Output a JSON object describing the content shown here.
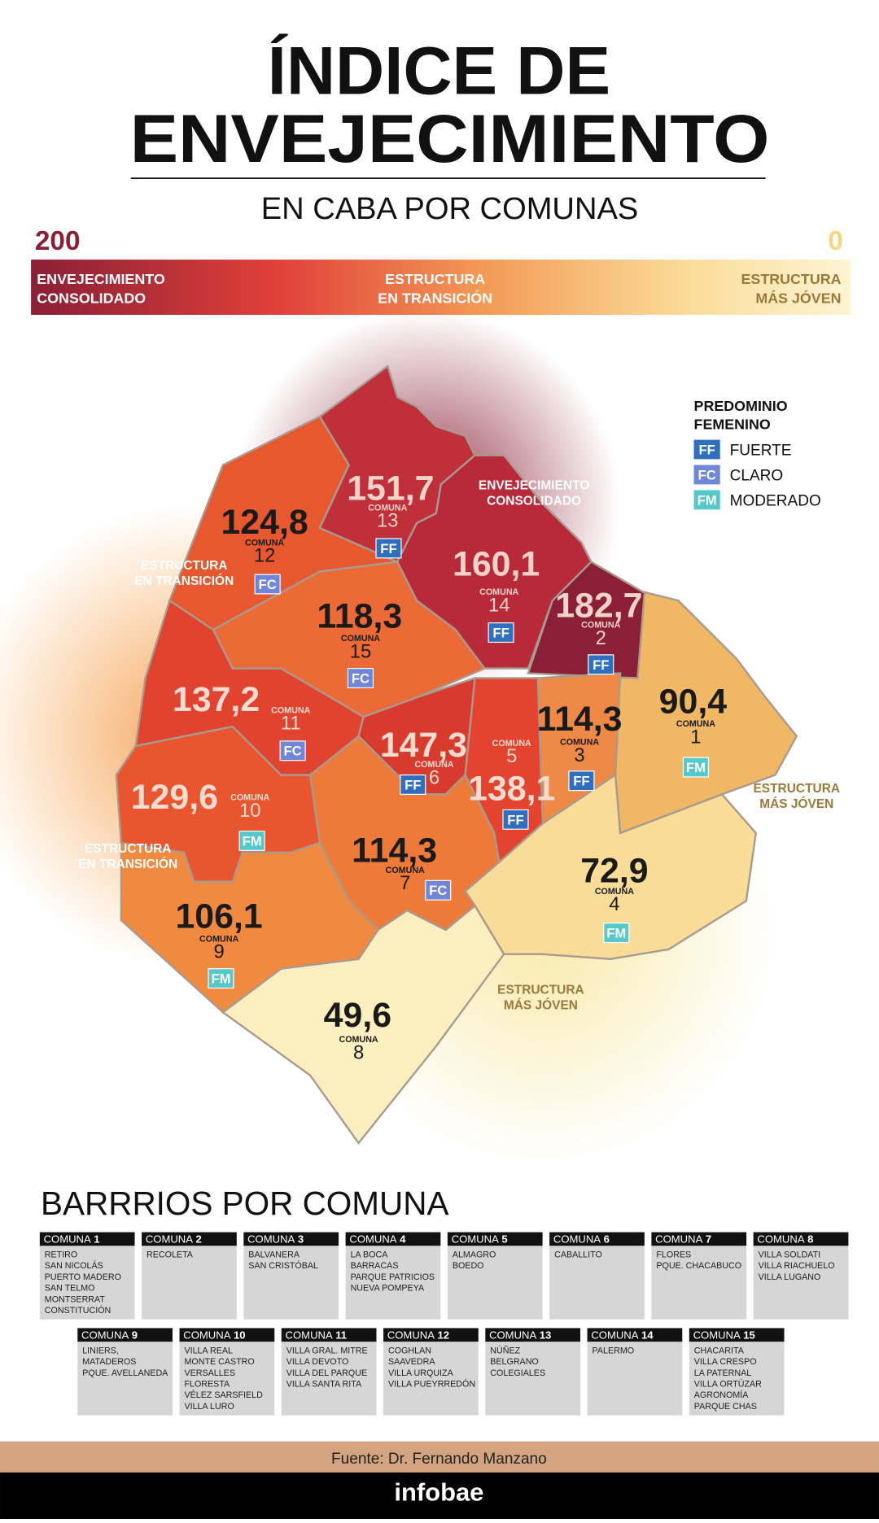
{
  "header": {
    "title_line1": "ÍNDICE DE",
    "title_line2": "ENVEJECIMIENTO",
    "subtitle": "EN CABA POR COMUNAS"
  },
  "scale": {
    "max": "200",
    "min": "0",
    "left": [
      "ENVEJECIMIENTO",
      "CONSOLIDADO"
    ],
    "middle": [
      "ESTRUCTURA",
      "EN TRANSICIÓN"
    ],
    "right": [
      "ESTRUCTURA",
      "MÁS JÓVEN"
    ]
  },
  "legend": {
    "title": [
      "PREDOMINIO",
      "FEMENINO"
    ],
    "items": [
      {
        "code": "FF",
        "label": "FUERTE"
      },
      {
        "code": "FC",
        "label": "CLARO"
      },
      {
        "code": "FM",
        "label": "MODERADO"
      }
    ]
  },
  "zones": [
    [
      "ENVEJECIMIENTO",
      "CONSOLIDADO"
    ],
    [
      "ESTRUCTURA",
      "EN TRANSICIÓN"
    ],
    [
      "ESTRUCTURA",
      "EN TRANSICIÓN"
    ],
    [
      "ESTRUCTURA",
      "MÁS JÓVEN"
    ],
    [
      "ESTRUCTURA",
      "MÁS JÓVEN"
    ]
  ],
  "comunas": [
    {
      "value": "90,4",
      "label": "COMUNA",
      "number": "1",
      "badge": "FM"
    },
    {
      "value": "182,7",
      "label": "COMUNA",
      "number": "2",
      "badge": "FF"
    },
    {
      "value": "114,3",
      "label": "COMUNA",
      "number": "3",
      "badge": "FF"
    },
    {
      "value": "72,9",
      "label": "COMUNA",
      "number": "4",
      "badge": "FM"
    },
    {
      "value": "138,1",
      "label": "COMUNA",
      "number": "5",
      "badge": "FF"
    },
    {
      "value": "147,3",
      "label": "COMUNA",
      "number": "6",
      "badge": "FF"
    },
    {
      "value": "114,3",
      "label": "COMUNA",
      "number": "7",
      "badge": "FC"
    },
    {
      "value": "49,6",
      "label": "COMUNA",
      "number": "8"
    },
    {
      "value": "106,1",
      "label": "COMUNA",
      "number": "9",
      "badge": "FM"
    },
    {
      "value": "129,6",
      "label": "COMUNA",
      "number": "10",
      "badge": "FM"
    },
    {
      "value": "137,2",
      "label": "COMUNA",
      "number": "11",
      "badge": "FC"
    },
    {
      "value": "124,8",
      "label": "COMUNA",
      "number": "12",
      "badge": "FC"
    },
    {
      "value": "151,7",
      "label": "COMUNA",
      "number": "13",
      "badge": "FF"
    },
    {
      "value": "160,1",
      "label": "COMUNA",
      "number": "14",
      "badge": "FF"
    },
    {
      "value": "118,3",
      "label": "COMUNA",
      "number": "15",
      "badge": "FC"
    }
  ],
  "barrios": {
    "title": "BARRRIOS POR COMUNA",
    "boxes": [
      {
        "title": "COMUNA",
        "number": "1",
        "names": [
          "RETIRO",
          "SAN NICOLÁS",
          "PUERTO MADERO",
          "SAN TELMO",
          "MONTSERRAT",
          "CONSTITUCIÓN"
        ]
      },
      {
        "title": "COMUNA",
        "number": "2",
        "names": [
          "RECOLETA"
        ]
      },
      {
        "title": "COMUNA",
        "number": "3",
        "names": [
          "BALVANERA",
          "SAN CRISTÓBAL"
        ]
      },
      {
        "title": "COMUNA",
        "number": "4",
        "names": [
          "LA BOCA",
          "BARRACAS",
          "PARQUE PATRICIOS",
          "NUEVA POMPEYA"
        ]
      },
      {
        "title": "COMUNA",
        "number": "5",
        "names": [
          "ALMAGRO",
          "BOEDO"
        ]
      },
      {
        "title": "COMUNA",
        "number": "6",
        "names": [
          "CABALLITO"
        ]
      },
      {
        "title": "COMUNA",
        "number": "7",
        "names": [
          "FLORES",
          "PQUE. CHACABUCO"
        ]
      },
      {
        "title": "COMUNA",
        "number": "8",
        "names": [
          "VILLA SOLDATI",
          "VILLA RIACHUELO",
          "VILLA LUGANO"
        ]
      },
      {
        "title": "COMUNA",
        "number": "9",
        "names": [
          "LINIERS,",
          "MATADEROS",
          "PQUE. AVELLANEDA"
        ]
      },
      {
        "title": "COMUNA",
        "number": "10",
        "names": [
          "VILLA REAL",
          "MONTE CASTRO",
          "VERSALLES",
          "FLORESTA",
          "VÉLEZ SARSFIELD",
          "VILLA LURO"
        ]
      },
      {
        "title": "COMUNA",
        "number": "11",
        "names": [
          "VILLA GRAL. MITRE",
          "VILLA DEVOTO",
          "VILLA DEL PARQUE",
          "VILLA SANTA RITA"
        ]
      },
      {
        "title": "COMUNA",
        "number": "12",
        "names": [
          "COGHLAN",
          "SAAVEDRA",
          "VILLA URQUIZA",
          "VILLA PUEYRREDÓN"
        ]
      },
      {
        "title": "COMUNA",
        "number": "13",
        "names": [
          "NÚÑEZ",
          "BELGRANO",
          "COLEGIALES"
        ]
      },
      {
        "title": "COMUNA",
        "number": "14",
        "names": [
          "PALERMO"
        ]
      },
      {
        "title": "COMUNA",
        "number": "15",
        "names": [
          "CHACARITA",
          "VILLA CRESPO",
          "LA PATERNAL",
          "VILLA ORTÚZAR",
          "AGRONOMÍA",
          "PARQUE CHAS"
        ]
      }
    ]
  },
  "footer": {
    "source": "Fuente: Dr. Fernando Manzano",
    "brand": "infobae"
  }
}
